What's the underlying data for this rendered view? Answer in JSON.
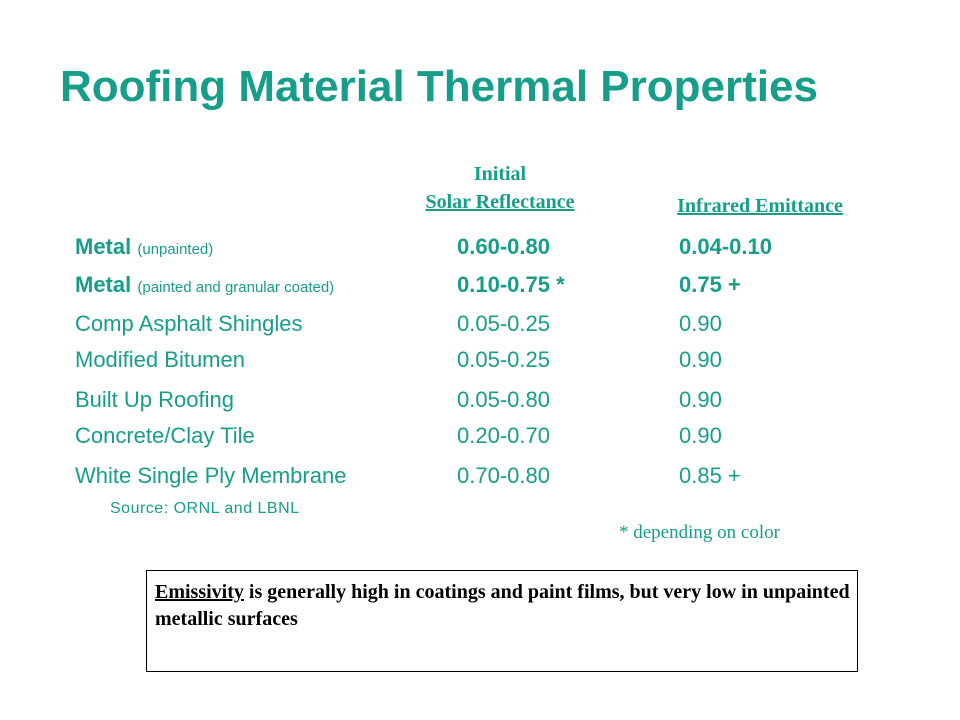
{
  "title": "Roofing Material Thermal Properties",
  "headers": {
    "reflectance_line1": "Initial",
    "reflectance_line2": "Solar Reflectance",
    "emittance": "Infrared Emittance"
  },
  "rows": [
    {
      "name": "Metal",
      "qualifier": "(unpainted)",
      "reflectance": "0.60-0.80",
      "emittance": "0.04-0.10",
      "bold": true
    },
    {
      "name": "Metal",
      "qualifier": "(painted and granular coated)",
      "reflectance": "0.10-0.75 *",
      "emittance": "0.75 +",
      "bold": true
    },
    {
      "name": "Comp Asphalt Shingles",
      "reflectance": "0.05-0.25",
      "emittance": "0.90"
    },
    {
      "name": "Modified Bitumen",
      "reflectance": "0.05-0.25",
      "emittance": "0.90"
    },
    {
      "name": "Built Up Roofing",
      "reflectance": "0.05-0.80",
      "emittance": "0.90"
    },
    {
      "name": "Concrete/Clay Tile",
      "reflectance": "0.20-0.70",
      "emittance": "0.90"
    },
    {
      "name": "White Single Ply Membrane",
      "reflectance": "0.70-0.80",
      "emittance": "0.85 +"
    }
  ],
  "source": "Source: ORNL and LBNL",
  "footnote": "* depending on color",
  "note": {
    "term": "Emissivity",
    "text": " is generally high in coatings and paint films, but very low in unpainted metallic surfaces"
  },
  "colors": {
    "accent": "#169e8a",
    "box_border": "#000000"
  }
}
